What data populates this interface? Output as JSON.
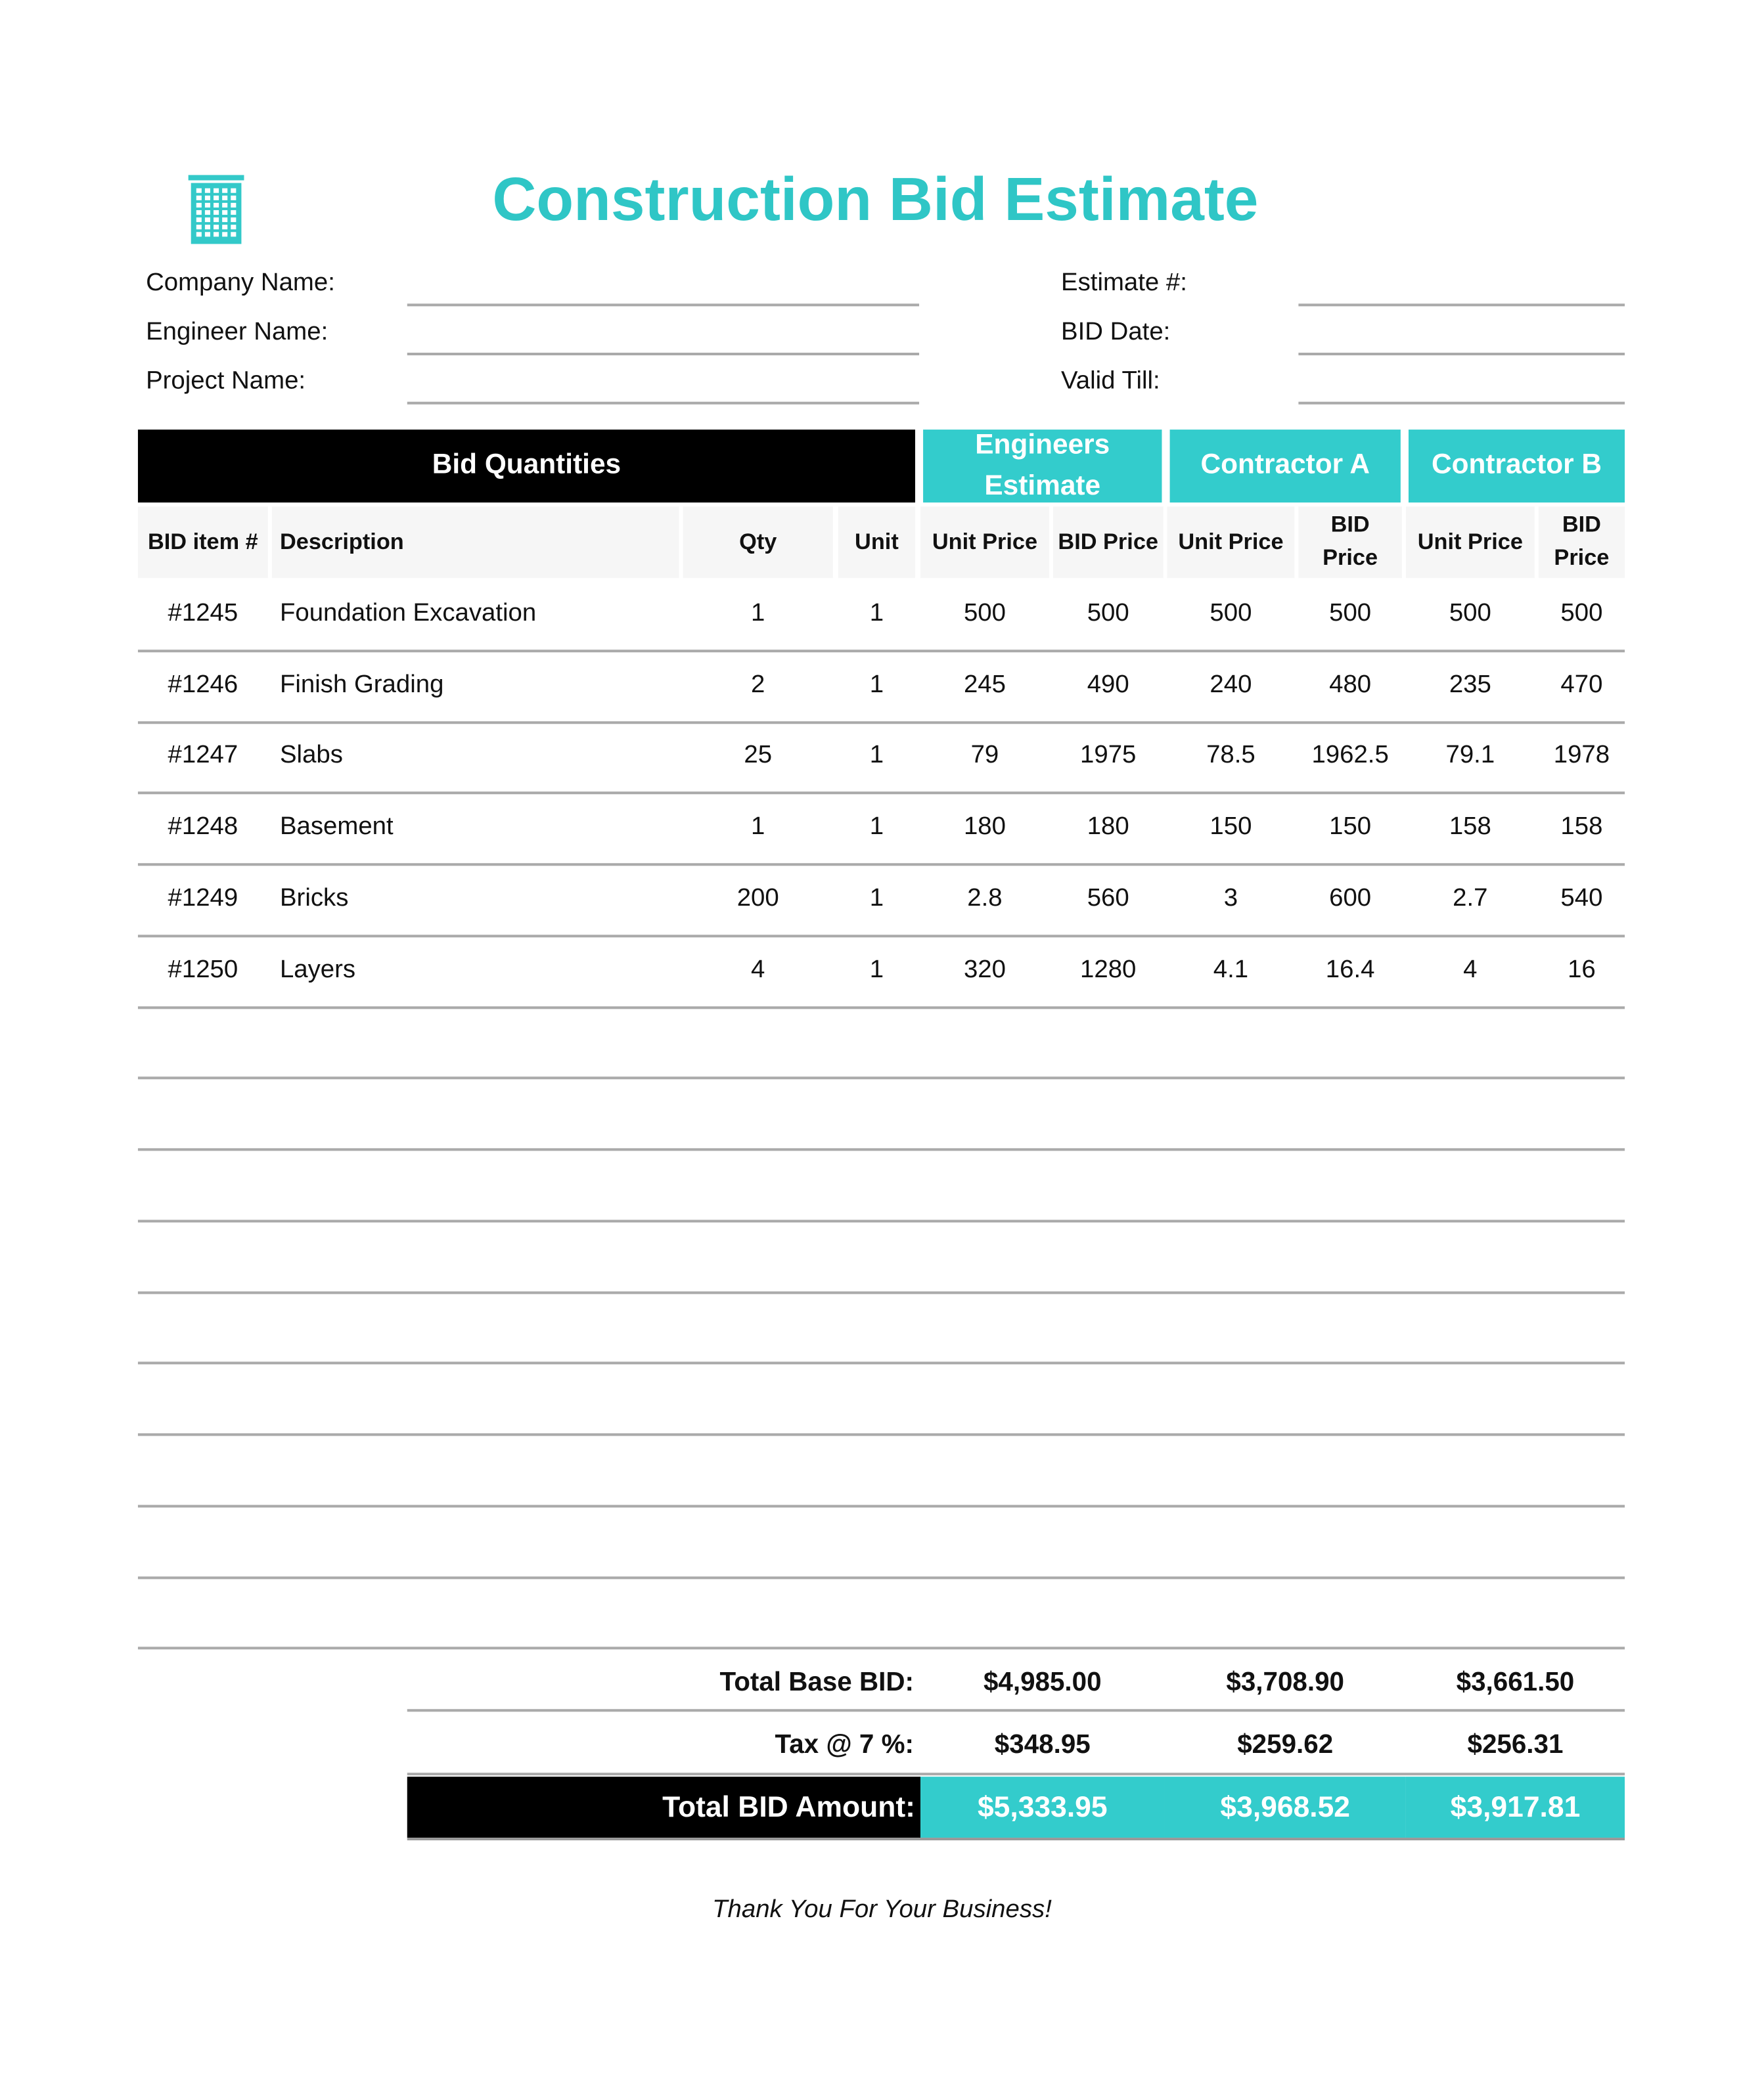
{
  "header": {
    "title": "Construction Bid Estimate",
    "left_fields": [
      "Company Name:",
      "Engineer Name:",
      "Project Name:"
    ],
    "right_fields": [
      "Estimate #:",
      "BID Date:",
      "Valid Till:"
    ]
  },
  "table": {
    "groups": [
      "Bid Quantities",
      "Engineers Estimate",
      "Contractor A",
      "Contractor B"
    ],
    "columns": [
      "BID item #",
      "Description",
      "Qty",
      "Unit",
      "Unit Price",
      "BID Price",
      "Unit Price",
      "BID Price",
      "Unit Price",
      "BID Price"
    ],
    "rows": [
      [
        "#1245",
        "Foundation Excavation",
        1,
        1,
        500,
        500,
        500,
        500,
        500,
        500
      ],
      [
        "#1246",
        "Finish Grading",
        2,
        1,
        245,
        490,
        240,
        480,
        235,
        470
      ],
      [
        "#1247",
        "Slabs",
        25,
        1,
        79,
        1975,
        78.5,
        1962.5,
        79.1,
        1978
      ],
      [
        "#1248",
        "Basement",
        1,
        1,
        180,
        180,
        150,
        150,
        158,
        158
      ],
      [
        "#1249",
        "Bricks",
        200,
        1,
        2.8,
        560,
        3,
        600,
        2.7,
        540
      ],
      [
        "#1250",
        "Layers",
        4,
        1,
        320,
        1280,
        4.1,
        16.4,
        4,
        16
      ]
    ]
  },
  "totals": [
    {
      "label": "Total Base BID:",
      "values": [
        "$4,985.00",
        "$3,708.90",
        "$3,661.50"
      ]
    },
    {
      "label": "Tax @ 7 %:",
      "values": [
        "$348.95",
        "$259.62",
        "$256.31"
      ]
    },
    {
      "label": "Total BID Amount:",
      "values": [
        "$5,333.95",
        "$3,968.52",
        "$3,917.81"
      ]
    }
  ],
  "footer": "Thank You For Your Business!"
}
